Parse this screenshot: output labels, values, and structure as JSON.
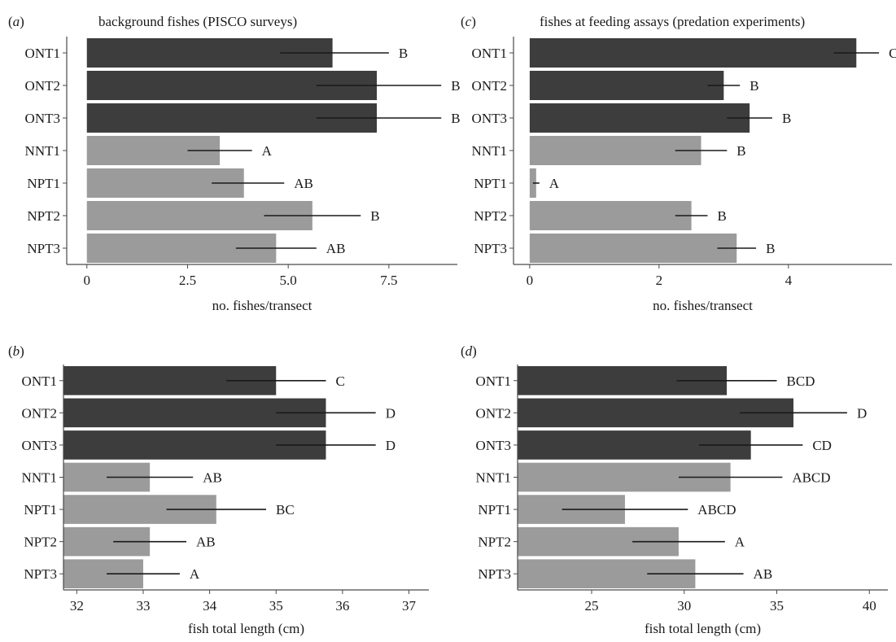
{
  "colors": {
    "old": "#3d3d3d",
    "new": "#9b9b9b"
  },
  "chart_data": [
    {
      "id": "a",
      "type": "bar",
      "orientation": "horizontal",
      "panel_label": "(a)",
      "title": "background fishes (PISCO surveys)",
      "xlabel": "no. fishes/transect",
      "xlim": [
        -0.5,
        9.2
      ],
      "xticks": [
        0,
        2.5,
        5.0,
        7.5
      ],
      "xtick_labels": [
        "0",
        "2.5",
        "5.0",
        "7.5"
      ],
      "categories": [
        "ONT1",
        "ONT2",
        "ONT3",
        "NNT1",
        "NPT1",
        "NPT2",
        "NPT3"
      ],
      "groups": [
        "old",
        "old",
        "old",
        "new",
        "new",
        "new",
        "new"
      ],
      "values": [
        6.1,
        7.2,
        7.2,
        3.3,
        3.9,
        5.6,
        4.7
      ],
      "error_low": [
        4.8,
        5.7,
        5.7,
        2.5,
        3.1,
        4.4,
        3.7
      ],
      "error_high": [
        7.5,
        8.8,
        8.8,
        4.1,
        4.9,
        6.8,
        5.7
      ],
      "significance": [
        "B",
        "B",
        "B",
        "A",
        "AB",
        "B",
        "AB"
      ]
    },
    {
      "id": "c",
      "type": "bar",
      "orientation": "horizontal",
      "panel_label": "(c)",
      "title": "fishes at feeding assays (predation experiments)",
      "xlabel": "no. fishes/transect",
      "xlim": [
        -0.25,
        5.6
      ],
      "xticks": [
        0,
        2,
        4
      ],
      "xtick_labels": [
        "0",
        "2",
        "4"
      ],
      "categories": [
        "ONT1",
        "ONT2",
        "ONT3",
        "NNT1",
        "NPT1",
        "NPT2",
        "NPT3"
      ],
      "groups": [
        "old",
        "old",
        "old",
        "new",
        "new",
        "new",
        "new"
      ],
      "values": [
        5.05,
        3.0,
        3.4,
        2.65,
        0.1,
        2.5,
        3.2
      ],
      "error_low": [
        4.7,
        2.75,
        3.05,
        2.25,
        0.05,
        2.25,
        2.9
      ],
      "error_high": [
        5.4,
        3.25,
        3.75,
        3.05,
        0.15,
        2.75,
        3.5
      ],
      "significance": [
        "C",
        "B",
        "B",
        "B",
        "A",
        "B",
        "B"
      ]
    },
    {
      "id": "b",
      "type": "bar",
      "orientation": "horizontal",
      "panel_label": "(b)",
      "title": "",
      "xlabel": "fish total length (cm)",
      "xlim": [
        31.8,
        37.3
      ],
      "xticks": [
        32,
        33,
        34,
        35,
        36,
        37
      ],
      "xtick_labels": [
        "32",
        "33",
        "34",
        "35",
        "36",
        "37"
      ],
      "categories": [
        "ONT1",
        "ONT2",
        "ONT3",
        "NNT1",
        "NPT1",
        "NPT2",
        "NPT3"
      ],
      "groups": [
        "old",
        "old",
        "old",
        "new",
        "new",
        "new",
        "new"
      ],
      "values": [
        35.0,
        35.75,
        35.75,
        33.1,
        34.1,
        33.1,
        33.0
      ],
      "error_low": [
        34.25,
        35.0,
        35.0,
        32.45,
        33.35,
        32.55,
        32.45
      ],
      "error_high": [
        35.75,
        36.5,
        36.5,
        33.75,
        34.85,
        33.65,
        33.55
      ],
      "significance": [
        "C",
        "D",
        "D",
        "AB",
        "BC",
        "AB",
        "A"
      ]
    },
    {
      "id": "d",
      "type": "bar",
      "orientation": "horizontal",
      "panel_label": "(d)",
      "title": "",
      "xlabel": "fish total length (cm)",
      "xlim": [
        21,
        41
      ],
      "xticks": [
        25,
        30,
        35,
        40
      ],
      "xtick_labels": [
        "25",
        "30",
        "35",
        "40"
      ],
      "categories": [
        "ONT1",
        "ONT2",
        "ONT3",
        "NNT1",
        "NPT1",
        "NPT2",
        "NPT3"
      ],
      "groups": [
        "old",
        "old",
        "old",
        "new",
        "new",
        "new",
        "new"
      ],
      "values": [
        32.3,
        35.9,
        33.6,
        32.5,
        26.8,
        29.7,
        30.6
      ],
      "error_low": [
        29.6,
        33.0,
        30.8,
        29.7,
        23.4,
        27.2,
        28.0
      ],
      "error_high": [
        35.0,
        38.8,
        36.4,
        35.3,
        30.2,
        32.2,
        33.2
      ],
      "significance": [
        "BCD",
        "D",
        "CD",
        "ABCD",
        "ABCD",
        "A",
        "AB"
      ]
    }
  ]
}
